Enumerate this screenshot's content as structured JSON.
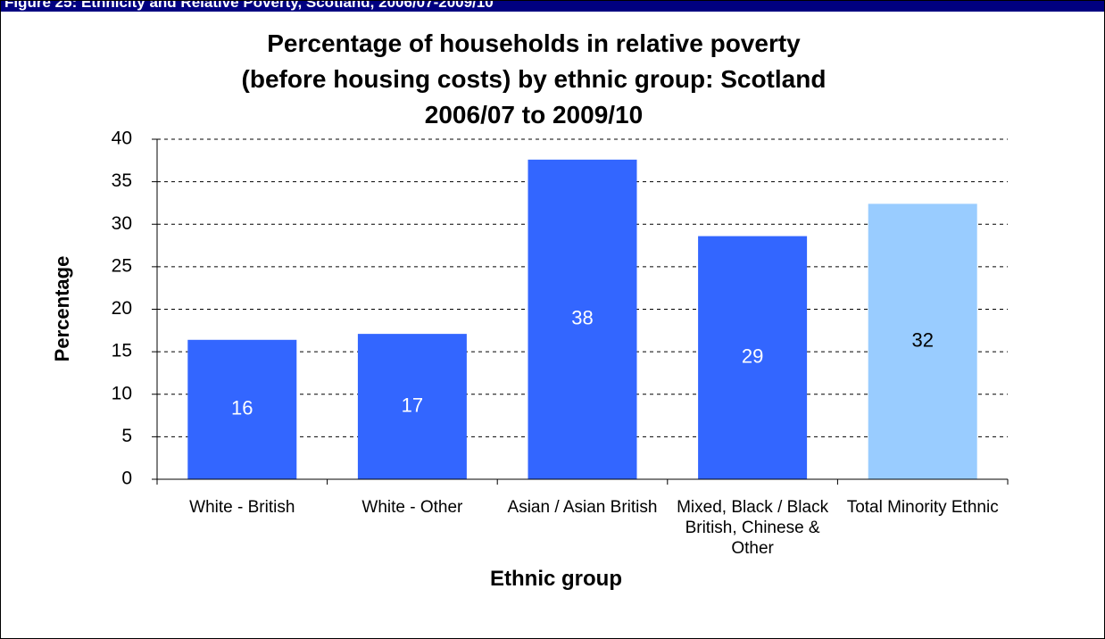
{
  "header": "Figure 25: Ethnicity and Relative Poverty, Scotland, 2006/07-2009/10",
  "chart_data": {
    "type": "bar",
    "title": "Percentage of households in relative poverty\n(before housing costs) by ethnic group: Scotland\n2006/07 to 2009/10",
    "x_label": "Ethnic group",
    "y_label": "Percentage",
    "categories": [
      "White - British",
      "White - Other",
      "Asian / Asian British",
      "Mixed, Black / Black British, Chinese & Other",
      "Total Minority Ethnic"
    ],
    "values": [
      16.4,
      17.1,
      37.6,
      28.6,
      32.4
    ],
    "value_labels": [
      "16",
      "17",
      "38",
      "29",
      "32"
    ],
    "colors": [
      "#3366ff",
      "#3366ff",
      "#3366ff",
      "#3366ff",
      "#99ccff"
    ],
    "ylim": [
      0,
      40
    ],
    "yticks": [
      0,
      5,
      10,
      15,
      20,
      25,
      30,
      35,
      40
    ],
    "grid": true
  }
}
